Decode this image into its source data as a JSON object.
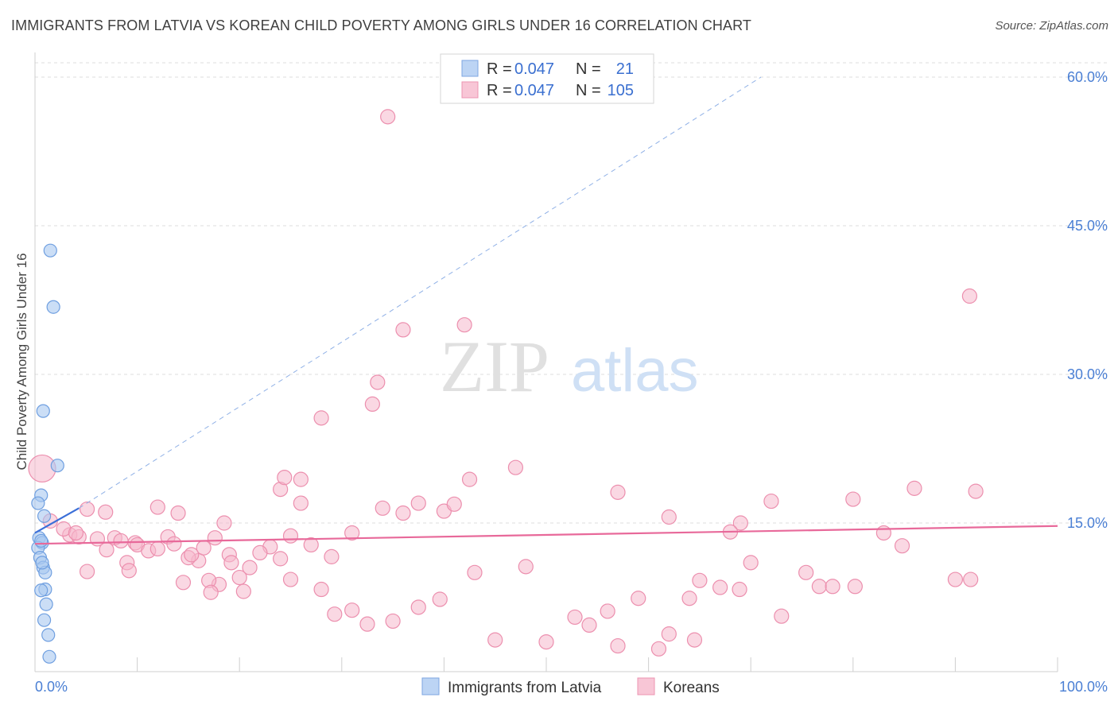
{
  "title": "IMMIGRANTS FROM LATVIA VS KOREAN CHILD POVERTY AMONG GIRLS UNDER 16 CORRELATION CHART",
  "source": "Source: ZipAtlas.com",
  "watermark": {
    "zip": "ZIP",
    "atlas": "atlas"
  },
  "colors": {
    "latvia_fill": "#a9c8f0",
    "latvia_stroke": "#6f9fe0",
    "latvia_line": "#3b6fd8",
    "korean_fill": "#f6b8cc",
    "korean_stroke": "#ec8fae",
    "korean_line": "#e8699a",
    "grid": "#dddddd",
    "axis_text": "#4a7fd4"
  },
  "legend": [
    {
      "r_label": "R =",
      "r_value": "0.047",
      "n_label": "N =",
      "n_value": "21"
    },
    {
      "r_label": "R =",
      "r_value": "0.047",
      "n_label": "N =",
      "n_value": "105"
    }
  ],
  "bottom_legend": [
    "Immigrants from Latvia",
    "Koreans"
  ],
  "chart_data": {
    "type": "scatter",
    "title": "IMMIGRANTS FROM LATVIA VS KOREAN CHILD POVERTY AMONG GIRLS UNDER 16 CORRELATION CHART",
    "xlabel": "",
    "ylabel": "Child Poverty Among Girls Under 16",
    "xlim": [
      0,
      100
    ],
    "ylim": [
      0,
      62
    ],
    "x_tick_labels": [
      "0.0%",
      "100.0%"
    ],
    "y_ticks": [
      15,
      30,
      45,
      60
    ],
    "y_tick_labels": [
      "15.0%",
      "30.0%",
      "45.0%",
      "60.0%"
    ],
    "series": [
      {
        "name": "Immigrants from Latvia",
        "x": [
          1.5,
          1.8,
          2.2,
          0.6,
          0.9,
          0.4,
          0.7,
          0.3,
          0.5,
          0.8,
          1.0,
          1.0,
          0.6,
          0.9,
          1.1,
          1.3,
          1.4,
          0.8,
          0.3,
          0.6,
          0.7
        ],
        "y": [
          42.5,
          36.8,
          20.8,
          17.8,
          15.7,
          13.5,
          13.0,
          12.5,
          11.5,
          10.5,
          10.0,
          8.3,
          8.2,
          5.2,
          6.8,
          3.7,
          1.5,
          26.3,
          17.0,
          13.2,
          11.0
        ],
        "trend": {
          "x": [
            0,
            4.3
          ],
          "y": [
            14.0,
            16.5
          ]
        },
        "trend_extended": {
          "x": [
            4.3,
            71.0
          ],
          "y": [
            16.5,
            60.0
          ]
        }
      },
      {
        "name": "Koreans",
        "x": [
          34.5,
          91.4,
          42,
          36,
          28,
          33,
          42.5,
          24,
          33.5,
          47,
          24.4,
          26,
          37.5,
          34,
          40,
          57,
          41,
          36,
          26,
          62,
          69,
          72,
          80,
          86,
          92,
          6.9,
          5.1,
          12,
          14,
          18.5,
          13,
          17.6,
          23,
          25,
          29,
          31,
          22,
          24,
          19,
          21,
          27,
          16,
          20,
          18,
          17,
          15,
          7.8,
          9.8,
          10,
          11.1,
          12,
          19.2,
          3.4,
          4.3,
          7,
          9,
          9.2,
          5.1,
          6.1,
          8.4,
          13.6,
          14.5,
          15.3,
          16.5,
          17.2,
          20.4,
          25,
          28,
          29.3,
          31,
          32.5,
          35,
          37.5,
          39.6,
          43,
          45,
          48,
          50,
          52.8,
          54.2,
          56,
          57,
          59,
          61,
          62,
          64,
          64.5,
          65,
          67,
          68,
          68.9,
          70,
          73,
          75.4,
          76.7,
          78,
          80.2,
          83,
          84.8,
          90,
          91.5,
          2.8,
          4,
          1.5,
          0.7
        ],
        "y": [
          56.0,
          37.9,
          35.0,
          34.5,
          25.6,
          27.0,
          19.4,
          18.4,
          29.2,
          20.6,
          19.6,
          17.0,
          17.0,
          16.5,
          16.2,
          18.1,
          16.9,
          16.0,
          19.4,
          15.6,
          15.0,
          17.2,
          17.4,
          18.5,
          18.2,
          16.1,
          16.4,
          16.6,
          16.0,
          15.0,
          13.6,
          13.5,
          12.6,
          13.7,
          11.6,
          14.0,
          12.0,
          11.4,
          11.8,
          10.5,
          12.8,
          11.2,
          9.5,
          8.8,
          9.2,
          11.5,
          13.5,
          13.0,
          12.8,
          12.2,
          12.4,
          11.0,
          13.8,
          13.6,
          12.3,
          11.0,
          10.2,
          10.1,
          13.4,
          13.2,
          12.9,
          9.0,
          11.8,
          12.5,
          8.0,
          8.1,
          9.3,
          8.3,
          5.8,
          6.2,
          4.8,
          5.1,
          6.5,
          7.3,
          10.0,
          3.2,
          10.6,
          3.0,
          5.5,
          4.7,
          6.1,
          2.6,
          7.4,
          2.3,
          3.8,
          7.4,
          3.2,
          9.2,
          8.5,
          14.1,
          8.3,
          11.0,
          5.6,
          10.0,
          8.6,
          8.6,
          8.6,
          14.0,
          12.7,
          9.3,
          9.3,
          14.4,
          14.0,
          15.2,
          20.5
        ],
        "trend": {
          "x": [
            0,
            100
          ],
          "y": [
            12.9,
            14.7
          ]
        }
      }
    ]
  }
}
